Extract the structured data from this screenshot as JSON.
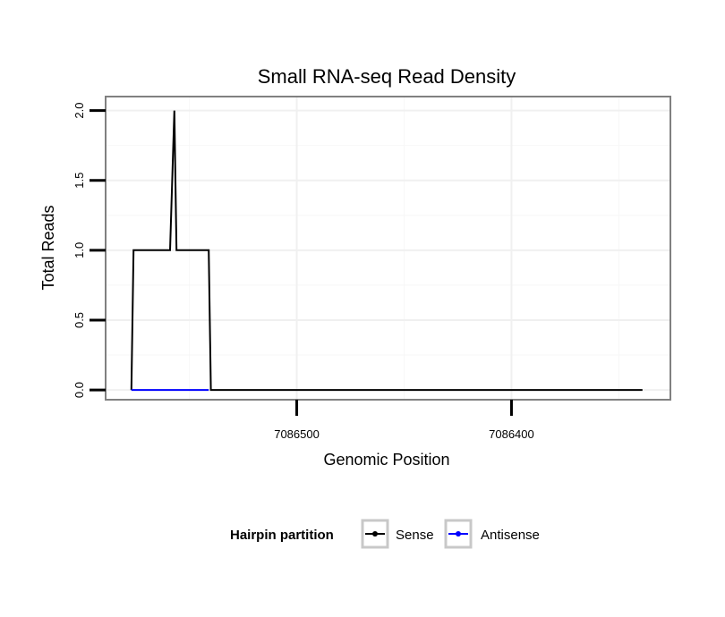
{
  "chart_data": {
    "type": "line",
    "title": "Small RNA-seq Read Density",
    "xlabel": "Genomic Position",
    "ylabel": "Total Reads",
    "x_reversed": true,
    "xlim": [
      7086326,
      7086589
    ],
    "ylim": [
      -0.07,
      2.1
    ],
    "x_ticks": [
      {
        "value": 7086500,
        "label": "7086500"
      },
      {
        "value": 7086400,
        "label": "7086400"
      }
    ],
    "x_minor_grid": [
      7086550,
      7086450,
      7086350
    ],
    "y_ticks": [
      {
        "value": 0.0,
        "label": "0.0"
      },
      {
        "value": 0.5,
        "label": "0.5"
      },
      {
        "value": 1.0,
        "label": "1.0"
      },
      {
        "value": 1.5,
        "label": "1.5"
      },
      {
        "value": 2.0,
        "label": "2.0"
      }
    ],
    "y_minor_grid": [
      0.25,
      0.75,
      1.25,
      1.75
    ],
    "grid": true,
    "series": [
      {
        "name": "Sense",
        "color": "#000000",
        "x": [
          7086577,
          7086576,
          7086559,
          7086557,
          7086556,
          7086541,
          7086540,
          7086339
        ],
        "y": [
          0,
          1,
          1,
          2,
          1,
          1,
          0,
          0
        ]
      },
      {
        "name": "Antisense",
        "color": "#0000ff",
        "x": [
          7086577,
          7086541
        ],
        "y": [
          0,
          0
        ]
      }
    ],
    "legend": {
      "title": "Hairpin partition",
      "placement": "bottom",
      "items": [
        "Sense",
        "Antisense"
      ]
    }
  }
}
